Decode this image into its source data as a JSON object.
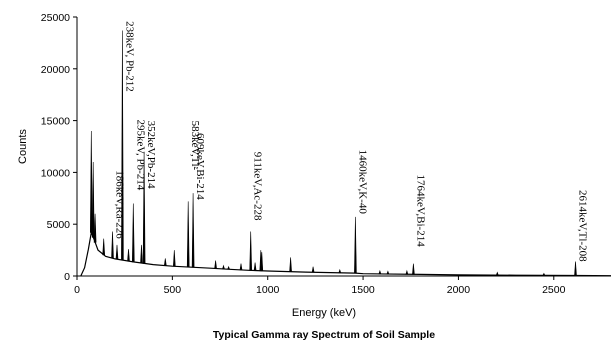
{
  "chart_data": {
    "type": "line",
    "title": "",
    "caption": "Typical Gamma ray Spectrum of Soil Sample",
    "xlabel": "Energy (keV)",
    "ylabel": "Counts",
    "xlim": [
      0,
      2800
    ],
    "ylim": [
      0,
      25000
    ],
    "xticks": [
      0,
      500,
      1000,
      1500,
      2000,
      2500
    ],
    "yticks": [
      0,
      5000,
      10000,
      15000,
      20000,
      25000
    ],
    "grid": false,
    "legend": "none",
    "line_color": "#000000",
    "baseline": [
      [
        20,
        0
      ],
      [
        40,
        800
      ],
      [
        60,
        2600
      ],
      [
        75,
        4200
      ],
      [
        90,
        3500
      ],
      [
        110,
        2500
      ],
      [
        150,
        1900
      ],
      [
        200,
        1650
      ],
      [
        300,
        1350
      ],
      [
        400,
        1100
      ],
      [
        500,
        950
      ],
      [
        600,
        850
      ],
      [
        700,
        750
      ],
      [
        800,
        650
      ],
      [
        900,
        550
      ],
      [
        1000,
        480
      ],
      [
        1200,
        380
      ],
      [
        1460,
        280
      ],
      [
        1500,
        220
      ],
      [
        1800,
        150
      ],
      [
        2000,
        110
      ],
      [
        2300,
        80
      ],
      [
        2620,
        50
      ],
      [
        2800,
        30
      ]
    ],
    "peaks": [
      {
        "x": 75,
        "y": 14000
      },
      {
        "x": 85,
        "y": 11000
      },
      {
        "x": 95,
        "y": 6000
      },
      {
        "x": 140,
        "y": 3600
      },
      {
        "x": 186,
        "y": 4300
      },
      {
        "x": 210,
        "y": 3000
      },
      {
        "x": 238,
        "y": 23700
      },
      {
        "x": 270,
        "y": 2600
      },
      {
        "x": 295,
        "y": 7000
      },
      {
        "x": 338,
        "y": 3000
      },
      {
        "x": 352,
        "y": 12000
      },
      {
        "x": 463,
        "y": 1700
      },
      {
        "x": 510,
        "y": 2500
      },
      {
        "x": 583,
        "y": 7200
      },
      {
        "x": 609,
        "y": 8000
      },
      {
        "x": 727,
        "y": 1500
      },
      {
        "x": 768,
        "y": 1000
      },
      {
        "x": 795,
        "y": 900
      },
      {
        "x": 860,
        "y": 1200
      },
      {
        "x": 911,
        "y": 4300
      },
      {
        "x": 934,
        "y": 1300
      },
      {
        "x": 964,
        "y": 2500
      },
      {
        "x": 969,
        "y": 2300
      },
      {
        "x": 1120,
        "y": 1800
      },
      {
        "x": 1238,
        "y": 900
      },
      {
        "x": 1378,
        "y": 600
      },
      {
        "x": 1460,
        "y": 5700
      },
      {
        "x": 1588,
        "y": 500
      },
      {
        "x": 1630,
        "y": 450
      },
      {
        "x": 1730,
        "y": 500
      },
      {
        "x": 1764,
        "y": 1200
      },
      {
        "x": 2204,
        "y": 350
      },
      {
        "x": 2448,
        "y": 250
      },
      {
        "x": 2614,
        "y": 1400
      }
    ],
    "annotations": [
      {
        "text": "238keV, Pb-212",
        "x": 238,
        "y": 24600
      },
      {
        "text": "186keV,Ra-226",
        "x": 186,
        "y": 10200
      },
      {
        "text": "295keV, Pb-214",
        "x": 295,
        "y": 15100
      },
      {
        "text": "352keV,Pb-214",
        "x": 352,
        "y": 15000
      },
      {
        "text": "583keV,Tl-",
        "x": 583,
        "y": 15000
      },
      {
        "text": "609keV,Bi-214",
        "x": 609,
        "y": 13800
      },
      {
        "text": "911keV,Ac-228",
        "x": 911,
        "y": 12000
      },
      {
        "text": "1460keV,K-40",
        "x": 1460,
        "y": 12200
      },
      {
        "text": "1764keV,Bi-214",
        "x": 1764,
        "y": 9800
      },
      {
        "text": "2614keV,Tl-208",
        "x": 2614,
        "y": 8300
      }
    ]
  }
}
